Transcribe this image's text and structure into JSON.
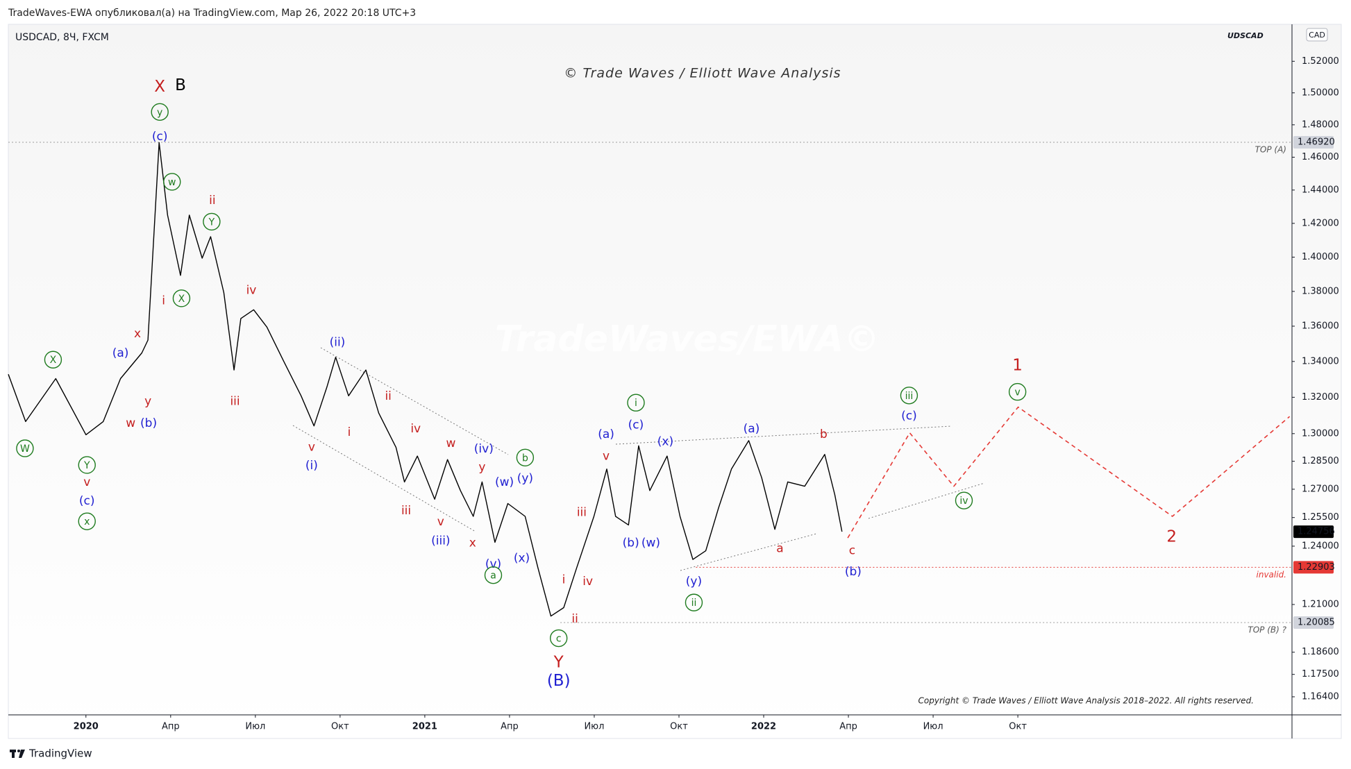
{
  "chart_data": {
    "type": "line",
    "header": "TradeWaves-EWA опубликовал(а) на TradingView.com, Мар 26, 2022 20:18 UTC+3",
    "symbol": "USDCAD, 8Ч, FXCM",
    "symbol_tag": "UDSCAD",
    "currency": "CAD",
    "title": "© Trade Waves / Elliott Wave Analysis",
    "watermark": "TradeWaves/EWA©",
    "copyright": "Copyright © Trade Waves / Elliott Wave Analysis 2018–2022. All rights reserved.",
    "brand": "TradingView",
    "ylog": true,
    "grid": false,
    "xlim": [
      2019.771,
      2023.559
    ],
    "ylim": [
      1.1552,
      1.5438
    ],
    "xticks": [
      {
        "value": 2020,
        "label": "2020"
      },
      {
        "value": 2020.25,
        "label": "Апр"
      },
      {
        "value": 2020.5,
        "label": "Июл"
      },
      {
        "value": 2020.75,
        "label": "Окт"
      },
      {
        "value": 2021,
        "label": "2021"
      },
      {
        "value": 2021.25,
        "label": "Апр"
      },
      {
        "value": 2021.5,
        "label": "Июл"
      },
      {
        "value": 2021.75,
        "label": "Окт"
      },
      {
        "value": 2022,
        "label": "2022"
      },
      {
        "value": 2022.25,
        "label": "Апр"
      },
      {
        "value": 2022.5,
        "label": "Июл"
      },
      {
        "value": 2022.75,
        "label": "Окт"
      }
    ],
    "yticks": [
      {
        "value": 1.52,
        "label": "1.52000"
      },
      {
        "value": 1.5,
        "label": "1.50000"
      },
      {
        "value": 1.48,
        "label": "1.48000"
      },
      {
        "value": 1.46,
        "label": "1.46000"
      },
      {
        "value": 1.44,
        "label": "1.44000"
      },
      {
        "value": 1.42,
        "label": "1.42000"
      },
      {
        "value": 1.4,
        "label": "1.40000"
      },
      {
        "value": 1.38,
        "label": "1.38000"
      },
      {
        "value": 1.36,
        "label": "1.36000"
      },
      {
        "value": 1.34,
        "label": "1.34000"
      },
      {
        "value": 1.32,
        "label": "1.32000"
      },
      {
        "value": 1.3,
        "label": "1.30000"
      },
      {
        "value": 1.285,
        "label": "1.28500"
      },
      {
        "value": 1.27,
        "label": "1.27000"
      },
      {
        "value": 1.255,
        "label": "1.25500"
      },
      {
        "value": 1.24,
        "label": "1.24000"
      },
      {
        "value": 1.21,
        "label": "1.21000"
      },
      {
        "value": 1.186,
        "label": "1.18600"
      },
      {
        "value": 1.175,
        "label": "1.17500"
      },
      {
        "value": 1.164,
        "label": "1.16400"
      }
    ],
    "levels": [
      {
        "value": 1.4692,
        "label": "1.46920",
        "note": "TOP (A)",
        "color": "#9e9e9e",
        "start": 2019.771
      },
      {
        "value": 1.22903,
        "label": "1.22903",
        "note": "invalid.",
        "color": "#e53935",
        "start": 2021.8
      },
      {
        "value": 1.20085,
        "label": "1.20085",
        "note": "TOP (B) ?",
        "color": "#9e9e9e",
        "start": 2021.4
      }
    ],
    "last_price": {
      "value": 1.24756,
      "label": "1.24756"
    },
    "series": [
      {
        "color": "#000000",
        "dash": false,
        "x": [
          2019.771,
          2019.822,
          2019.911,
          2020.0,
          2020.051,
          2020.102,
          2020.165,
          2020.183,
          2020.216,
          2020.241,
          2020.279,
          2020.305,
          2020.343,
          2020.368,
          2020.407,
          2020.437,
          2020.457,
          2020.495,
          2020.534,
          2020.584,
          2020.635,
          2020.673,
          2020.711,
          2020.737,
          2020.775,
          2020.826,
          2020.864,
          2020.915,
          2020.94,
          2020.978,
          2021.029,
          2021.067,
          2021.105,
          2021.143,
          2021.169,
          2021.207,
          2021.245,
          2021.296,
          2021.334,
          2021.372,
          2021.41,
          2021.448,
          2021.499,
          2021.537,
          2021.563,
          2021.601,
          2021.631,
          2021.664,
          2021.715,
          2021.753,
          2021.791,
          2021.829,
          2021.867,
          2021.905,
          2021.956,
          2021.994,
          2022.033,
          2022.071,
          2022.121,
          2022.18,
          2022.21,
          2022.231
        ],
        "values": [
          1.3328,
          1.3066,
          1.3304,
          1.2994,
          1.3066,
          1.3304,
          1.3448,
          1.3521,
          1.469,
          1.4249,
          1.3893,
          1.4249,
          1.3994,
          1.4121,
          1.3793,
          1.3352,
          1.3644,
          1.3694,
          1.3595,
          1.34,
          1.3208,
          1.3042,
          1.3256,
          1.3424,
          1.3208,
          1.3352,
          1.3113,
          1.2925,
          1.2739,
          1.2878,
          1.2647,
          1.2859,
          1.2693,
          1.2556,
          1.2739,
          1.242,
          1.2624,
          1.2556,
          1.2287,
          1.2041,
          1.2084,
          1.2287,
          1.2556,
          1.2808,
          1.2556,
          1.2511,
          1.2934,
          1.2693,
          1.2878,
          1.2556,
          1.2331,
          1.2376,
          1.2602,
          1.2808,
          1.2962,
          1.2762,
          1.2488,
          1.2739,
          1.2716,
          1.2887,
          1.267,
          1.2476
        ]
      },
      {
        "color": "#e53935",
        "dash": true,
        "x": [
          2022.248,
          2022.431,
          2022.561,
          2022.751,
          2023.206,
          2023.552
        ],
        "values": [
          1.2443,
          1.3004,
          1.2716,
          1.3146,
          1.2556,
          1.3094
        ]
      }
    ],
    "annotations": [
      {
        "text": "X",
        "x": 2020.218,
        "y": 1.504,
        "color": "#c41e1e",
        "style": "large"
      },
      {
        "text": "B",
        "x": 2020.279,
        "y": 1.505,
        "color": "#000000",
        "style": "large"
      },
      {
        "text": "y",
        "x": 2020.218,
        "y": 1.488,
        "color": "#1e7b1e",
        "style": "circled"
      },
      {
        "text": "(c)",
        "x": 2020.218,
        "y": 1.473,
        "color": "#1f1fd1",
        "style": "plain"
      },
      {
        "text": "w",
        "x": 2020.254,
        "y": 1.445,
        "color": "#1e7b1e",
        "style": "circled"
      },
      {
        "text": "ii",
        "x": 2020.373,
        "y": 1.434,
        "color": "#c41e1e",
        "style": "plain"
      },
      {
        "text": "Y",
        "x": 2020.371,
        "y": 1.421,
        "color": "#1e7b1e",
        "style": "circled"
      },
      {
        "text": "X",
        "x": 2020.282,
        "y": 1.376,
        "color": "#1e7b1e",
        "style": "circled"
      },
      {
        "text": "i",
        "x": 2020.229,
        "y": 1.375,
        "color": "#c41e1e",
        "style": "plain"
      },
      {
        "text": "iv",
        "x": 2020.488,
        "y": 1.381,
        "color": "#c41e1e",
        "style": "plain"
      },
      {
        "text": "iii",
        "x": 2020.44,
        "y": 1.318,
        "color": "#c41e1e",
        "style": "plain"
      },
      {
        "text": "x",
        "x": 2020.152,
        "y": 1.356,
        "color": "#c41e1e",
        "style": "plain"
      },
      {
        "text": "(a)",
        "x": 2020.102,
        "y": 1.345,
        "color": "#1f1fd1",
        "style": "plain"
      },
      {
        "text": "y",
        "x": 2020.183,
        "y": 1.318,
        "color": "#c41e1e",
        "style": "plain"
      },
      {
        "text": "w",
        "x": 2020.132,
        "y": 1.306,
        "color": "#c41e1e",
        "style": "plain"
      },
      {
        "text": "(b)",
        "x": 2020.185,
        "y": 1.306,
        "color": "#1f1fd1",
        "style": "plain"
      },
      {
        "text": "X",
        "x": 2019.903,
        "y": 1.341,
        "color": "#1e7b1e",
        "style": "circled"
      },
      {
        "text": "W",
        "x": 2019.82,
        "y": 1.292,
        "color": "#1e7b1e",
        "style": "circled"
      },
      {
        "text": "Y",
        "x": 2020.003,
        "y": 1.283,
        "color": "#1e7b1e",
        "style": "circled"
      },
      {
        "text": "v",
        "x": 2020.003,
        "y": 1.274,
        "color": "#c41e1e",
        "style": "plain"
      },
      {
        "text": "(c)",
        "x": 2020.003,
        "y": 1.264,
        "color": "#1f1fd1",
        "style": "plain"
      },
      {
        "text": "x",
        "x": 2020.003,
        "y": 1.253,
        "color": "#1e7b1e",
        "style": "circled"
      },
      {
        "text": "(ii)",
        "x": 2020.742,
        "y": 1.351,
        "color": "#1f1fd1",
        "style": "plain"
      },
      {
        "text": "v",
        "x": 2020.666,
        "y": 1.293,
        "color": "#c41e1e",
        "style": "plain"
      },
      {
        "text": "(i)",
        "x": 2020.666,
        "y": 1.283,
        "color": "#1f1fd1",
        "style": "plain"
      },
      {
        "text": "i",
        "x": 2020.777,
        "y": 1.301,
        "color": "#c41e1e",
        "style": "plain"
      },
      {
        "text": "ii",
        "x": 2020.892,
        "y": 1.321,
        "color": "#c41e1e",
        "style": "plain"
      },
      {
        "text": "iv",
        "x": 2020.973,
        "y": 1.303,
        "color": "#c41e1e",
        "style": "plain"
      },
      {
        "text": "iii",
        "x": 2020.945,
        "y": 1.259,
        "color": "#c41e1e",
        "style": "plain"
      },
      {
        "text": "w",
        "x": 2021.077,
        "y": 1.295,
        "color": "#c41e1e",
        "style": "plain"
      },
      {
        "text": "v",
        "x": 2021.047,
        "y": 1.253,
        "color": "#c41e1e",
        "style": "plain"
      },
      {
        "text": "(iii)",
        "x": 2021.047,
        "y": 1.243,
        "color": "#1f1fd1",
        "style": "plain"
      },
      {
        "text": "(iv)",
        "x": 2021.174,
        "y": 1.292,
        "color": "#1f1fd1",
        "style": "plain"
      },
      {
        "text": "y",
        "x": 2021.169,
        "y": 1.282,
        "color": "#c41e1e",
        "style": "plain"
      },
      {
        "text": "x",
        "x": 2021.141,
        "y": 1.242,
        "color": "#c41e1e",
        "style": "plain"
      },
      {
        "text": "(w)",
        "x": 2021.235,
        "y": 1.274,
        "color": "#1f1fd1",
        "style": "plain"
      },
      {
        "text": "b",
        "x": 2021.296,
        "y": 1.287,
        "color": "#1e7b1e",
        "style": "circled"
      },
      {
        "text": "(y)",
        "x": 2021.296,
        "y": 1.276,
        "color": "#1f1fd1",
        "style": "plain"
      },
      {
        "text": "(v)",
        "x": 2021.202,
        "y": 1.231,
        "color": "#1f1fd1",
        "style": "plain"
      },
      {
        "text": "(x)",
        "x": 2021.286,
        "y": 1.234,
        "color": "#1f1fd1",
        "style": "plain"
      },
      {
        "text": "a",
        "x": 2021.202,
        "y": 1.225,
        "color": "#1e7b1e",
        "style": "circled"
      },
      {
        "text": "i",
        "x": 2021.41,
        "y": 1.223,
        "color": "#c41e1e",
        "style": "plain"
      },
      {
        "text": "iv",
        "x": 2021.481,
        "y": 1.222,
        "color": "#c41e1e",
        "style": "plain"
      },
      {
        "text": "ii",
        "x": 2021.443,
        "y": 1.203,
        "color": "#c41e1e",
        "style": "plain"
      },
      {
        "text": "c",
        "x": 2021.395,
        "y": 1.193,
        "color": "#1e7b1e",
        "style": "circled"
      },
      {
        "text": "Y",
        "x": 2021.395,
        "y": 1.181,
        "color": "#c41e1e",
        "style": "large"
      },
      {
        "text": "(B)",
        "x": 2021.395,
        "y": 1.172,
        "color": "#1f1fd1",
        "style": "large"
      },
      {
        "text": "iii",
        "x": 2021.463,
        "y": 1.258,
        "color": "#c41e1e",
        "style": "plain"
      },
      {
        "text": "v",
        "x": 2021.535,
        "y": 1.288,
        "color": "#c41e1e",
        "style": "plain"
      },
      {
        "text": "(a)",
        "x": 2021.535,
        "y": 1.3,
        "color": "#1f1fd1",
        "style": "plain"
      },
      {
        "text": "i",
        "x": 2021.623,
        "y": 1.317,
        "color": "#1e7b1e",
        "style": "circled"
      },
      {
        "text": "(c)",
        "x": 2021.623,
        "y": 1.305,
        "color": "#1f1fd1",
        "style": "plain"
      },
      {
        "text": "(x)",
        "x": 2021.71,
        "y": 1.296,
        "color": "#1f1fd1",
        "style": "plain"
      },
      {
        "text": "(b)",
        "x": 2021.608,
        "y": 1.242,
        "color": "#1f1fd1",
        "style": "plain"
      },
      {
        "text": "(w)",
        "x": 2021.667,
        "y": 1.242,
        "color": "#1f1fd1",
        "style": "plain"
      },
      {
        "text": "(y)",
        "x": 2021.794,
        "y": 1.222,
        "color": "#1f1fd1",
        "style": "plain"
      },
      {
        "text": "ii",
        "x": 2021.794,
        "y": 1.211,
        "color": "#1e7b1e",
        "style": "circled"
      },
      {
        "text": "(a)",
        "x": 2021.964,
        "y": 1.303,
        "color": "#1f1fd1",
        "style": "plain"
      },
      {
        "text": "b",
        "x": 2022.177,
        "y": 1.3,
        "color": "#c41e1e",
        "style": "plain"
      },
      {
        "text": "a",
        "x": 2022.048,
        "y": 1.239,
        "color": "#c41e1e",
        "style": "plain"
      },
      {
        "text": "c",
        "x": 2022.261,
        "y": 1.238,
        "color": "#c41e1e",
        "style": "plain"
      },
      {
        "text": "(b)",
        "x": 2022.264,
        "y": 1.227,
        "color": "#1f1fd1",
        "style": "plain"
      },
      {
        "text": "iii",
        "x": 2022.429,
        "y": 1.321,
        "color": "#1e7b1e",
        "style": "circled"
      },
      {
        "text": "(c)",
        "x": 2022.429,
        "y": 1.31,
        "color": "#1f1fd1",
        "style": "plain"
      },
      {
        "text": "iv",
        "x": 2022.591,
        "y": 1.264,
        "color": "#1e7b1e",
        "style": "circled"
      },
      {
        "text": "1",
        "x": 2022.749,
        "y": 1.338,
        "color": "#c41e1e",
        "style": "large"
      },
      {
        "text": "v",
        "x": 2022.749,
        "y": 1.323,
        "color": "#1e7b1e",
        "style": "circled"
      },
      {
        "text": "2",
        "x": 2023.204,
        "y": 1.245,
        "color": "#c41e1e",
        "style": "large"
      }
    ]
  }
}
